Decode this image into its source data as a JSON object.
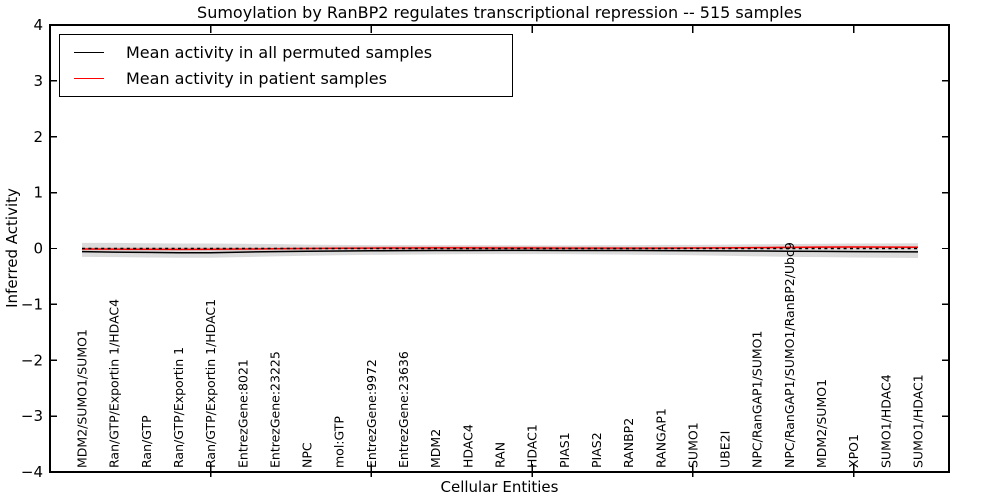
{
  "figure": {
    "background": "#ffffff"
  },
  "chart_data": {
    "type": "line",
    "title": "Sumoylation by RanBP2 regulates transcriptional repression -- 515 samples",
    "xlabel": "Cellular Entities",
    "ylabel": "Inferred Activity",
    "ylim": [
      -4,
      4
    ],
    "ytick_labels": [
      "4",
      "3",
      "2",
      "1",
      "0",
      "−1",
      "−2",
      "−3",
      "−4"
    ],
    "ytick_values": [
      4,
      3,
      2,
      1,
      0,
      -1,
      -2,
      -3,
      -4
    ],
    "x_major_tick_indices": [
      4,
      9,
      14,
      19,
      24
    ],
    "grid": false,
    "legend_position": "upper-left",
    "categories": [
      "MDM2/SUMO1/SUMO1",
      "Ran/GTP/Exportin 1/HDAC4",
      "Ran/GTP",
      "Ran/GTP/Exportin 1",
      "Ran/GTP/Exportin 1/HDAC1",
      "EntrezGene:8021",
      "EntrezGene:23225",
      "NPC",
      "mol:GTP",
      "EntrezGene:9972",
      "EntrezGene:23636",
      "MDM2",
      "HDAC4",
      "RAN",
      "HDAC1",
      "PIAS1",
      "PIAS2",
      "RANBP2",
      "RANGAP1",
      "SUMO1",
      "UBE2I",
      "NPC/RanGAP1/SUMO1",
      "NPC/RanGAP1/SUMO1/RanBP2/Ubc9",
      "MDM2/SUMO1",
      "XPO1",
      "SUMO1/HDAC4",
      "SUMO1/HDAC1"
    ],
    "series": [
      {
        "name": "Mean activity in all permuted samples",
        "color": "#000000",
        "values": [
          -0.055,
          -0.065,
          -0.07,
          -0.075,
          -0.075,
          -0.065,
          -0.055,
          -0.05,
          -0.045,
          -0.04,
          -0.038,
          -0.036,
          -0.035,
          -0.034,
          -0.034,
          -0.035,
          -0.035,
          -0.036,
          -0.038,
          -0.04,
          -0.042,
          -0.045,
          -0.05,
          -0.052,
          -0.055,
          -0.058,
          -0.06
        ]
      },
      {
        "name": "Mean activity in patient samples",
        "color": "#ff0000",
        "values": [
          -0.01,
          -0.012,
          -0.014,
          -0.015,
          -0.014,
          -0.01,
          -0.005,
          0.0,
          0.004,
          0.007,
          0.01,
          0.012,
          0.012,
          0.01,
          0.008,
          0.007,
          0.006,
          0.006,
          0.007,
          0.009,
          0.012,
          0.016,
          0.02,
          0.024,
          0.026,
          0.025,
          0.022
        ]
      }
    ],
    "bands": [
      {
        "name": "permuted-std-band",
        "color": "#000000",
        "opacity": 0.14,
        "upper": [
          0.1,
          0.1,
          0.095,
          0.09,
          0.09,
          0.085,
          0.08,
          0.07,
          0.065,
          0.06,
          0.06,
          0.055,
          0.055,
          0.055,
          0.055,
          0.055,
          0.06,
          0.06,
          0.065,
          0.065,
          0.07,
          0.075,
          0.08,
          0.085,
          0.09,
          0.09,
          0.095
        ],
        "lower": [
          -0.15,
          -0.155,
          -0.16,
          -0.165,
          -0.165,
          -0.155,
          -0.14,
          -0.13,
          -0.12,
          -0.115,
          -0.11,
          -0.105,
          -0.1,
          -0.1,
          -0.1,
          -0.1,
          -0.105,
          -0.11,
          -0.115,
          -0.12,
          -0.13,
          -0.14,
          -0.15,
          -0.155,
          -0.16,
          -0.165,
          -0.17
        ]
      },
      {
        "name": "patient-std-band",
        "color": "#ff0000",
        "opacity": 0.1,
        "upper": [
          0.02,
          0.02,
          0.02,
          0.02,
          0.02,
          0.02,
          0.025,
          0.03,
          0.035,
          0.04,
          0.05,
          0.055,
          0.055,
          0.05,
          0.045,
          0.04,
          0.035,
          0.03,
          0.03,
          0.03,
          0.035,
          0.04,
          0.045,
          0.05,
          0.05,
          0.045,
          0.045
        ],
        "lower": [
          -0.04,
          -0.04,
          -0.045,
          -0.045,
          -0.045,
          -0.04,
          -0.035,
          -0.03,
          -0.03,
          -0.025,
          -0.03,
          -0.03,
          -0.03,
          -0.03,
          -0.03,
          -0.025,
          -0.025,
          -0.02,
          -0.02,
          -0.015,
          -0.015,
          -0.01,
          -0.01,
          -0.005,
          -0.005,
          -0.005,
          -0.005
        ]
      }
    ],
    "zero_line": {
      "value": 0,
      "style": "dotted",
      "color": "#000000"
    }
  }
}
